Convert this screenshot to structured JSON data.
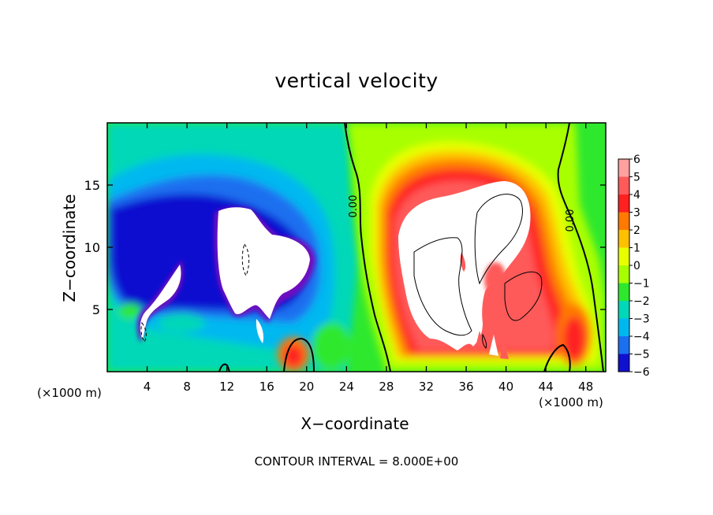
{
  "chart_data": {
    "type": "heatmap",
    "title": "vertical velocity",
    "xlabel": "X−coordinate",
    "ylabel": "Z−coordinate",
    "x_unit_label": "(×1000 m)",
    "xlim": [
      0,
      50
    ],
    "ylim": [
      0,
      20
    ],
    "x_ticks": [
      4,
      8,
      12,
      16,
      20,
      24,
      28,
      32,
      36,
      40,
      44,
      48
    ],
    "y_ticks": [
      5,
      10,
      15
    ],
    "colorbar": {
      "levels": [
        6,
        5,
        4,
        3,
        2,
        1,
        0,
        -1,
        -2,
        -3,
        -4,
        -5,
        -6
      ],
      "level_labels": [
        "6",
        "5",
        "4",
        "3",
        "2",
        "1",
        "0",
        "−1",
        "−2",
        "−3",
        "−4",
        "−5",
        "−6"
      ],
      "colors": [
        "#ffa0a0",
        "#ff5a5a",
        "#ff2020",
        "#ff7a00",
        "#ffc000",
        "#e8ff00",
        "#a8ff00",
        "#2ee82e",
        "#00d8b8",
        "#00b8f0",
        "#1a70f0",
        "#1010d0",
        "#7010c0"
      ],
      "saturated_color": "#ffffff"
    },
    "contour_labels": [
      {
        "text": "0.00"
      },
      {
        "text": "0.00"
      }
    ],
    "footer": "CONTOUR INTERVAL = 8.000E+00"
  }
}
